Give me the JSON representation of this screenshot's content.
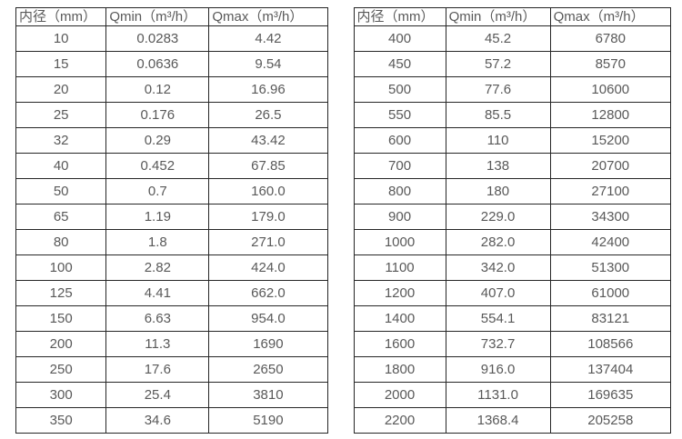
{
  "accent_colors": {
    "border": "#262626",
    "text": "#595959",
    "background": "#ffffff"
  },
  "tables": [
    {
      "name": "flow-rate-table-small-diameters",
      "headers": [
        "内径（mm）",
        "Qmin（m³/h）",
        "Qmax（m³/h）"
      ],
      "rows": [
        [
          "10",
          "0.0283",
          "4.42"
        ],
        [
          "15",
          "0.0636",
          "9.54"
        ],
        [
          "20",
          "0.12",
          "16.96"
        ],
        [
          "25",
          "0.176",
          "26.5"
        ],
        [
          "32",
          "0.29",
          "43.42"
        ],
        [
          "40",
          "0.452",
          "67.85"
        ],
        [
          "50",
          "0.7",
          "160.0"
        ],
        [
          "65",
          "1.19",
          "179.0"
        ],
        [
          "80",
          "1.8",
          "271.0"
        ],
        [
          "100",
          "2.82",
          "424.0"
        ],
        [
          "125",
          "4.41",
          "662.0"
        ],
        [
          "150",
          "6.63",
          "954.0"
        ],
        [
          "200",
          "11.3",
          "1690"
        ],
        [
          "250",
          "17.6",
          "2650"
        ],
        [
          "300",
          "25.4",
          "3810"
        ],
        [
          "350",
          "34.6",
          "5190"
        ]
      ]
    },
    {
      "name": "flow-rate-table-large-diameters",
      "headers": [
        "内径（mm）",
        "Qmin（m³/h）",
        "Qmax（m³/h）"
      ],
      "rows": [
        [
          "400",
          "45.2",
          "6780"
        ],
        [
          "450",
          "57.2",
          "8570"
        ],
        [
          "500",
          "77.6",
          "10600"
        ],
        [
          "550",
          "85.5",
          "12800"
        ],
        [
          "600",
          "110",
          "15200"
        ],
        [
          "700",
          "138",
          "20700"
        ],
        [
          "800",
          "180",
          "27100"
        ],
        [
          "900",
          "229.0",
          "34300"
        ],
        [
          "1000",
          "282.0",
          "42400"
        ],
        [
          "1100",
          "342.0",
          "51300"
        ],
        [
          "1200",
          "407.0",
          "61000"
        ],
        [
          "1400",
          "554.1",
          "83121"
        ],
        [
          "1600",
          "732.7",
          "108566"
        ],
        [
          "1800",
          "916.0",
          "137404"
        ],
        [
          "2000",
          "1131.0",
          "169635"
        ],
        [
          "2200",
          "1368.4",
          "205258"
        ]
      ]
    }
  ]
}
